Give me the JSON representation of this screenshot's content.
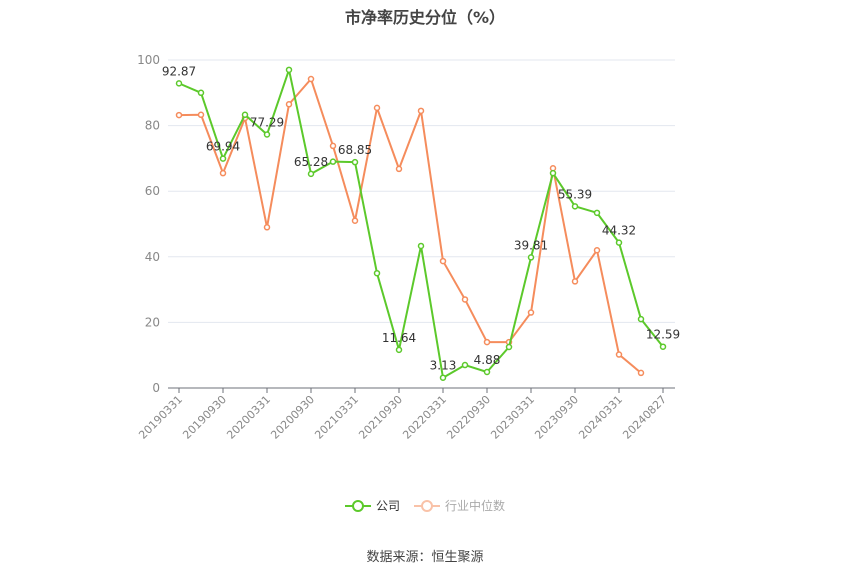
{
  "title": "市净率历史分位（%）",
  "legend": {
    "company": "公司",
    "industry": "行业中位数"
  },
  "source": "数据来源：恒生聚源",
  "colors": {
    "company": "#5cc92b",
    "industry": "#f58c5c",
    "grid": "#e3e7ef",
    "axis": "#6e7079",
    "tick_label": "#888888"
  },
  "chart_data": {
    "type": "line",
    "title": "市净率历史分位（%）",
    "xlabel": "",
    "ylabel": "",
    "ylim": [
      0,
      100
    ],
    "yticks": [
      0,
      20,
      40,
      60,
      80,
      100
    ],
    "grid": true,
    "legend_position": "bottom",
    "x": [
      "20190331",
      "20190630",
      "20190930",
      "20191231",
      "20200331",
      "20200630",
      "20200930",
      "20201231",
      "20210331",
      "20210630",
      "20210930",
      "20211231",
      "20220331",
      "20220630",
      "20220930",
      "20221231",
      "20230331",
      "20230630",
      "20230930",
      "20231231",
      "20240331",
      "20240630",
      "20240827"
    ],
    "x_tick_labels": [
      "20190331",
      "20190930",
      "20200331",
      "20200930",
      "20210331",
      "20210930",
      "20220331",
      "20220930",
      "20230331",
      "20230930",
      "20240331",
      "20240827"
    ],
    "series": [
      {
        "name": "公司",
        "values": [
          92.87,
          90.0,
          69.94,
          83.3,
          77.29,
          97.0,
          65.28,
          69.0,
          68.85,
          35.0,
          11.64,
          43.3,
          3.13,
          7.0,
          4.88,
          12.5,
          39.81,
          65.5,
          55.39,
          53.4,
          44.32,
          21.0,
          12.59
        ],
        "labels": {
          "0": "92.87",
          "2": "69.94",
          "4": "77.29",
          "6": "65.28",
          "8": "68.85",
          "10": "11.64",
          "12": "3.13",
          "14": "4.88",
          "16": "39.81",
          "18": "55.39",
          "20": "44.32",
          "22": "12.59"
        }
      },
      {
        "name": "行业中位数",
        "values": [
          83.2,
          83.3,
          65.5,
          82.3,
          49.0,
          86.5,
          94.2,
          73.8,
          51.0,
          85.4,
          66.8,
          84.5,
          38.7,
          27.0,
          14.0,
          14.0,
          23.0,
          67.0,
          32.5,
          42.0,
          10.2,
          4.6,
          null
        ]
      }
    ]
  }
}
